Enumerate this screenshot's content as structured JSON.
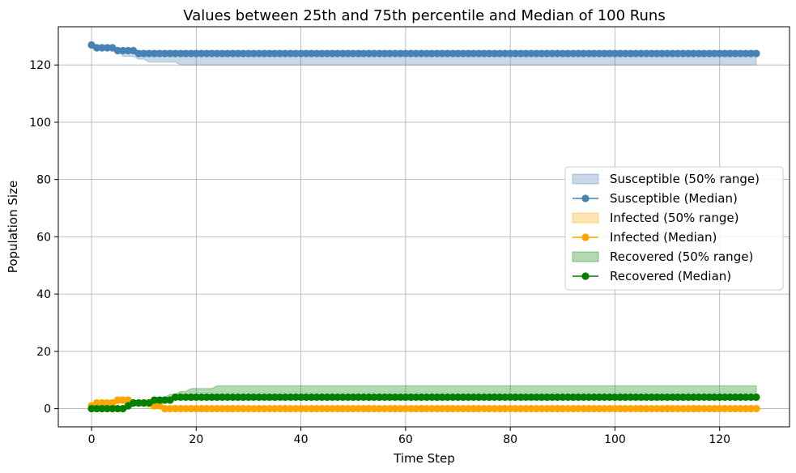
{
  "chart_data": {
    "type": "line",
    "title": "Values between 25th and 75th percentile and Median of 100 Runs",
    "xlabel": "Time Step",
    "ylabel": "Population Size",
    "xlim": [
      -6.35,
      133.35
    ],
    "ylim": [
      -6.35,
      133.35
    ],
    "xticks": [
      0,
      20,
      40,
      60,
      80,
      100,
      120
    ],
    "yticks": [
      0,
      20,
      40,
      60,
      80,
      100,
      120
    ],
    "grid": true,
    "legend_position": "center-right",
    "x_range": [
      0,
      127
    ],
    "series": [
      {
        "key": "susceptible",
        "color": "#4682b4",
        "band_label": "Susceptible (50% range)",
        "median_label": "Susceptible (Median)",
        "median": [
          [
            0,
            127
          ],
          [
            1,
            126
          ],
          [
            5,
            125
          ],
          [
            9,
            124
          ],
          [
            127,
            124
          ]
        ],
        "band_lower": [
          [
            0,
            127
          ],
          [
            1,
            126
          ],
          [
            3,
            125
          ],
          [
            6,
            123
          ],
          [
            9,
            122
          ],
          [
            11,
            121
          ],
          [
            17,
            120
          ],
          [
            127,
            120
          ]
        ],
        "band_upper": [
          [
            0,
            127
          ],
          [
            1,
            126
          ],
          [
            5,
            125
          ],
          [
            9,
            125
          ],
          [
            127,
            125
          ]
        ]
      },
      {
        "key": "infected",
        "color": "#ffa500",
        "band_label": "Infected (50% range)",
        "median_label": "Infected (Median)",
        "median": [
          [
            0,
            1
          ],
          [
            1,
            2
          ],
          [
            4,
            2
          ],
          [
            5,
            3
          ],
          [
            7,
            3
          ],
          [
            8,
            2
          ],
          [
            11,
            2
          ],
          [
            12,
            1
          ],
          [
            13,
            1
          ],
          [
            14,
            0
          ],
          [
            127,
            0
          ]
        ],
        "band_lower": [
          [
            0,
            0
          ],
          [
            1,
            1
          ],
          [
            4,
            1
          ],
          [
            5,
            2
          ],
          [
            6,
            2
          ],
          [
            7,
            1
          ],
          [
            9,
            1
          ],
          [
            11,
            0
          ],
          [
            127,
            0
          ]
        ],
        "band_upper": [
          [
            0,
            1
          ],
          [
            1,
            2
          ],
          [
            4,
            2
          ],
          [
            5,
            3
          ],
          [
            8,
            3
          ],
          [
            9,
            2
          ],
          [
            11,
            2
          ],
          [
            13,
            1
          ],
          [
            15,
            0
          ],
          [
            127,
            0
          ]
        ]
      },
      {
        "key": "recovered",
        "color": "#008000",
        "band_label": "Recovered (50% range)",
        "median_label": "Recovered (Median)",
        "median": [
          [
            0,
            0
          ],
          [
            6,
            0
          ],
          [
            7,
            1
          ],
          [
            8,
            2
          ],
          [
            11,
            2
          ],
          [
            12,
            3
          ],
          [
            15,
            3
          ],
          [
            16,
            4
          ],
          [
            127,
            4
          ]
        ],
        "band_lower": [
          [
            0,
            0
          ],
          [
            7,
            0
          ],
          [
            8,
            1
          ],
          [
            11,
            2
          ],
          [
            13,
            2
          ],
          [
            15,
            3
          ],
          [
            17,
            3
          ],
          [
            127,
            3
          ]
        ],
        "band_upper": [
          [
            0,
            0
          ],
          [
            5,
            0
          ],
          [
            6,
            1
          ],
          [
            8,
            2
          ],
          [
            11,
            3
          ],
          [
            13,
            4
          ],
          [
            15,
            5
          ],
          [
            17,
            6
          ],
          [
            19,
            7
          ],
          [
            24,
            8
          ],
          [
            127,
            8
          ]
        ]
      }
    ]
  }
}
